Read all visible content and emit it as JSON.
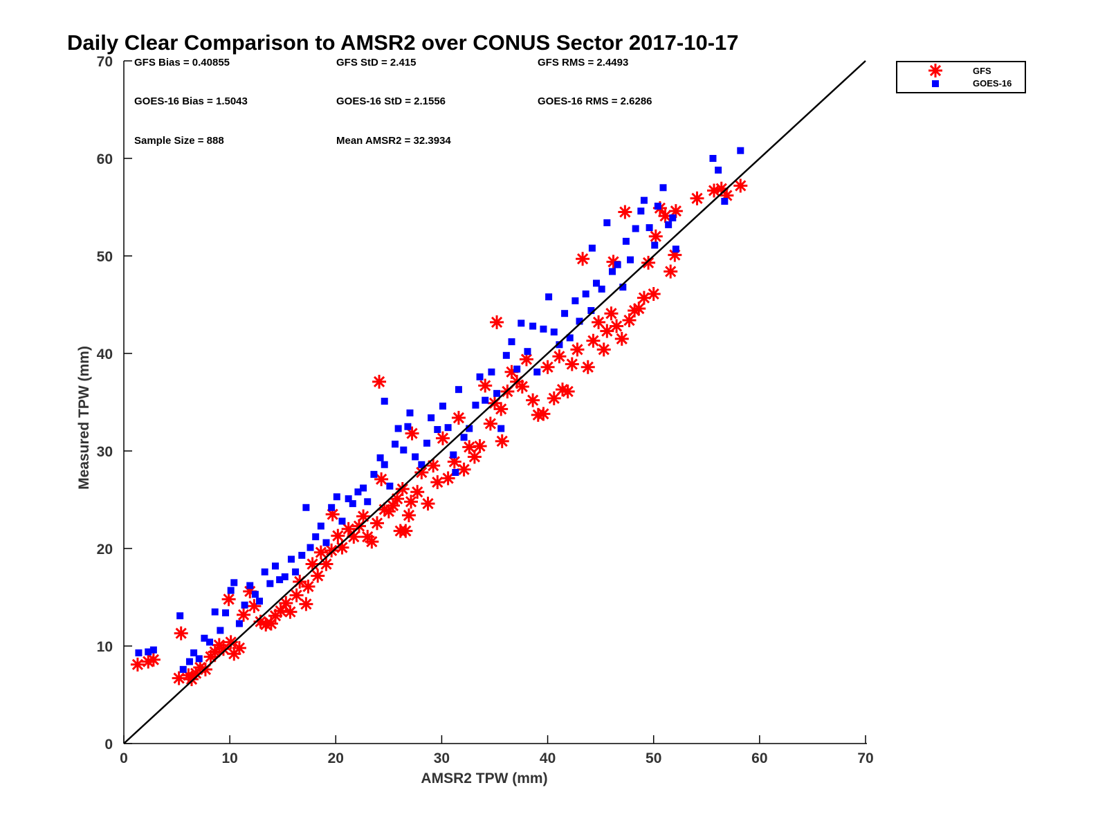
{
  "chart_data": {
    "type": "scatter",
    "title": "Daily Clear Comparison to AMSR2 over CONUS Sector 2017-10-17",
    "xlabel": "AMSR2 TPW (mm)",
    "ylabel": "Measured TPW (mm)",
    "xlim": [
      0,
      70
    ],
    "ylim": [
      0,
      70
    ],
    "xticks": [
      "0",
      "10",
      "20",
      "30",
      "40",
      "50",
      "60",
      "70"
    ],
    "yticks": [
      "0",
      "10",
      "20",
      "30",
      "40",
      "50",
      "60",
      "70"
    ],
    "grid": false,
    "legend_position": "outside-top-right",
    "reference_line": "1:1",
    "annotations": [
      "GFS Bias = 0.40855",
      "GFS StD = 2.415",
      "GFS RMS = 2.4493",
      "GOES-16 Bias = 1.5043",
      "GOES-16 StD = 2.1556",
      "GOES-16 RMS = 2.6286",
      "Sample Size = 888",
      "Mean AMSR2 = 32.3934"
    ],
    "series": [
      {
        "name": "GFS",
        "marker": "asterisk",
        "color": "#ff0000",
        "points": [
          [
            1.3,
            8.1
          ],
          [
            2.3,
            8.4
          ],
          [
            2.8,
            8.6
          ],
          [
            5.2,
            6.7
          ],
          [
            5.4,
            11.3
          ],
          [
            6.1,
            7.0
          ],
          [
            6.4,
            6.6
          ],
          [
            6.8,
            7.2
          ],
          [
            7.2,
            7.8
          ],
          [
            7.7,
            7.6
          ],
          [
            8.2,
            8.9
          ],
          [
            8.6,
            9.4
          ],
          [
            9.0,
            10.1
          ],
          [
            9.4,
            9.7
          ],
          [
            9.9,
            14.8
          ],
          [
            10.1,
            10.4
          ],
          [
            10.4,
            9.2
          ],
          [
            10.9,
            9.8
          ],
          [
            11.3,
            13.2
          ],
          [
            11.9,
            15.6
          ],
          [
            12.3,
            14.1
          ],
          [
            12.9,
            12.5
          ],
          [
            13.4,
            12.2
          ],
          [
            13.9,
            12.3
          ],
          [
            14.3,
            13.1
          ],
          [
            14.8,
            13.6
          ],
          [
            15.3,
            14.4
          ],
          [
            15.7,
            13.5
          ],
          [
            16.3,
            15.2
          ],
          [
            16.6,
            16.6
          ],
          [
            17.2,
            14.3
          ],
          [
            17.4,
            16.1
          ],
          [
            17.8,
            18.4
          ],
          [
            18.3,
            17.2
          ],
          [
            18.6,
            19.6
          ],
          [
            19.1,
            18.4
          ],
          [
            19.6,
            19.8
          ],
          [
            19.7,
            23.5
          ],
          [
            20.2,
            21.3
          ],
          [
            20.6,
            20.1
          ],
          [
            21.2,
            22.0
          ],
          [
            21.7,
            21.2
          ],
          [
            22.2,
            22.3
          ],
          [
            22.6,
            23.3
          ],
          [
            23.0,
            21.2
          ],
          [
            23.4,
            20.7
          ],
          [
            23.9,
            22.6
          ],
          [
            24.3,
            27.1
          ],
          [
            24.6,
            24.0
          ],
          [
            25.0,
            23.8
          ],
          [
            25.4,
            24.4
          ],
          [
            25.8,
            25.1
          ],
          [
            26.1,
            21.8
          ],
          [
            26.6,
            21.8
          ],
          [
            26.3,
            26.1
          ],
          [
            26.9,
            23.4
          ],
          [
            27.1,
            24.8
          ],
          [
            27.2,
            31.8
          ],
          [
            27.7,
            25.8
          ],
          [
            28.1,
            27.8
          ],
          [
            28.7,
            24.6
          ],
          [
            29.2,
            28.5
          ],
          [
            29.6,
            26.8
          ],
          [
            30.1,
            31.3
          ],
          [
            30.6,
            27.2
          ],
          [
            31.2,
            28.9
          ],
          [
            31.6,
            33.4
          ],
          [
            32.1,
            28.1
          ],
          [
            32.6,
            30.4
          ],
          [
            33.1,
            29.4
          ],
          [
            33.6,
            30.5
          ],
          [
            34.1,
            36.7
          ],
          [
            34.6,
            32.8
          ],
          [
            35.0,
            34.9
          ],
          [
            35.6,
            34.3
          ],
          [
            35.7,
            31.0
          ],
          [
            36.2,
            36.1
          ],
          [
            36.6,
            38.1
          ],
          [
            37.1,
            37.1
          ],
          [
            37.6,
            36.6
          ],
          [
            38.0,
            39.4
          ],
          [
            38.6,
            35.2
          ],
          [
            39.1,
            33.7
          ],
          [
            39.6,
            33.8
          ],
          [
            40.0,
            38.6
          ],
          [
            40.6,
            35.4
          ],
          [
            41.1,
            39.7
          ],
          [
            41.4,
            36.3
          ],
          [
            41.9,
            36.1
          ],
          [
            42.3,
            38.9
          ],
          [
            42.8,
            40.4
          ],
          [
            43.3,
            49.7
          ],
          [
            43.8,
            38.6
          ],
          [
            44.3,
            41.3
          ],
          [
            44.8,
            43.2
          ],
          [
            45.3,
            40.4
          ],
          [
            45.6,
            42.3
          ],
          [
            46.0,
            44.1
          ],
          [
            46.5,
            42.8
          ],
          [
            47.0,
            41.5
          ],
          [
            47.3,
            54.5
          ],
          [
            47.7,
            43.4
          ],
          [
            48.2,
            44.4
          ],
          [
            48.6,
            44.6
          ],
          [
            49.1,
            45.7
          ],
          [
            49.5,
            49.3
          ],
          [
            50.0,
            46.1
          ],
          [
            50.2,
            52.0
          ],
          [
            50.6,
            54.9
          ],
          [
            51.1,
            54.1
          ],
          [
            51.6,
            48.4
          ],
          [
            52.0,
            50.1
          ],
          [
            52.1,
            54.6
          ],
          [
            54.1,
            55.9
          ],
          [
            55.7,
            56.7
          ],
          [
            56.4,
            56.9
          ],
          [
            56.9,
            56.2
          ],
          [
            58.2,
            57.2
          ],
          [
            24.1,
            37.1
          ],
          [
            35.2,
            43.2
          ],
          [
            46.2,
            49.4
          ]
        ]
      },
      {
        "name": "GOES-16",
        "marker": "square",
        "color": "#0000ff",
        "points": [
          [
            1.4,
            9.3
          ],
          [
            2.3,
            9.4
          ],
          [
            2.8,
            9.6
          ],
          [
            5.3,
            13.1
          ],
          [
            5.6,
            7.6
          ],
          [
            6.2,
            8.4
          ],
          [
            6.6,
            9.3
          ],
          [
            7.1,
            8.7
          ],
          [
            7.6,
            10.8
          ],
          [
            8.1,
            10.4
          ],
          [
            8.6,
            13.5
          ],
          [
            9.1,
            11.6
          ],
          [
            9.6,
            13.4
          ],
          [
            10.1,
            15.7
          ],
          [
            10.4,
            16.5
          ],
          [
            10.9,
            12.3
          ],
          [
            11.4,
            14.2
          ],
          [
            11.9,
            16.2
          ],
          [
            12.4,
            15.3
          ],
          [
            12.8,
            14.6
          ],
          [
            13.3,
            17.6
          ],
          [
            13.8,
            16.4
          ],
          [
            14.3,
            18.2
          ],
          [
            14.7,
            16.8
          ],
          [
            15.2,
            17.1
          ],
          [
            15.8,
            18.9
          ],
          [
            16.2,
            17.6
          ],
          [
            16.8,
            19.3
          ],
          [
            17.2,
            24.2
          ],
          [
            17.6,
            20.1
          ],
          [
            18.1,
            21.2
          ],
          [
            18.6,
            22.3
          ],
          [
            19.1,
            20.6
          ],
          [
            19.6,
            24.2
          ],
          [
            20.1,
            25.3
          ],
          [
            20.6,
            22.8
          ],
          [
            21.2,
            25.1
          ],
          [
            21.6,
            24.6
          ],
          [
            22.1,
            25.8
          ],
          [
            22.6,
            26.2
          ],
          [
            23.0,
            24.8
          ],
          [
            23.6,
            27.6
          ],
          [
            24.2,
            29.3
          ],
          [
            24.6,
            28.6
          ],
          [
            25.1,
            26.4
          ],
          [
            25.6,
            30.7
          ],
          [
            25.9,
            32.3
          ],
          [
            26.4,
            30.1
          ],
          [
            26.8,
            32.5
          ],
          [
            27.0,
            33.9
          ],
          [
            27.5,
            29.4
          ],
          [
            28.1,
            28.6
          ],
          [
            28.6,
            30.8
          ],
          [
            29.0,
            33.4
          ],
          [
            29.6,
            32.2
          ],
          [
            30.1,
            34.6
          ],
          [
            30.6,
            32.4
          ],
          [
            31.1,
            29.6
          ],
          [
            31.6,
            36.3
          ],
          [
            32.1,
            31.4
          ],
          [
            32.6,
            32.3
          ],
          [
            33.2,
            34.7
          ],
          [
            33.6,
            37.6
          ],
          [
            34.1,
            35.2
          ],
          [
            34.7,
            38.1
          ],
          [
            35.2,
            35.9
          ],
          [
            35.6,
            32.3
          ],
          [
            36.1,
            39.8
          ],
          [
            36.6,
            41.2
          ],
          [
            37.1,
            38.4
          ],
          [
            37.5,
            43.1
          ],
          [
            38.1,
            40.2
          ],
          [
            38.6,
            42.8
          ],
          [
            39.0,
            38.1
          ],
          [
            39.6,
            42.5
          ],
          [
            40.1,
            45.8
          ],
          [
            40.6,
            42.2
          ],
          [
            41.1,
            40.9
          ],
          [
            41.6,
            44.1
          ],
          [
            42.1,
            41.6
          ],
          [
            42.6,
            45.4
          ],
          [
            43.0,
            43.3
          ],
          [
            43.6,
            46.1
          ],
          [
            44.1,
            44.4
          ],
          [
            44.6,
            47.2
          ],
          [
            45.1,
            46.6
          ],
          [
            45.6,
            53.4
          ],
          [
            46.1,
            48.4
          ],
          [
            46.6,
            49.1
          ],
          [
            47.1,
            46.8
          ],
          [
            47.4,
            51.5
          ],
          [
            47.8,
            49.6
          ],
          [
            48.3,
            52.8
          ],
          [
            48.8,
            54.6
          ],
          [
            49.1,
            55.7
          ],
          [
            49.6,
            52.9
          ],
          [
            50.1,
            51.1
          ],
          [
            50.4,
            55.1
          ],
          [
            50.9,
            57.0
          ],
          [
            51.4,
            53.2
          ],
          [
            51.8,
            53.9
          ],
          [
            52.1,
            50.7
          ],
          [
            55.6,
            60.0
          ],
          [
            56.1,
            58.8
          ],
          [
            56.7,
            55.6
          ],
          [
            58.2,
            60.8
          ],
          [
            24.6,
            35.1
          ],
          [
            31.3,
            27.8
          ],
          [
            44.2,
            50.8
          ]
        ]
      }
    ]
  }
}
